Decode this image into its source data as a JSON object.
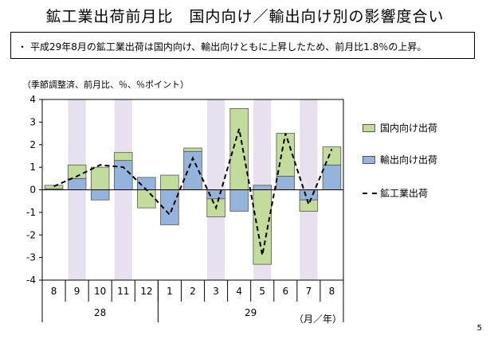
{
  "slide": {
    "title": "鉱工業出荷前月比　国内向け／輸出向け別の影響度合い",
    "summary_bullet": "・",
    "summary": "平成29年8月の鉱工業出荷は国内向け、輸出向けともに上昇したため、前月比1.8％の上昇。",
    "unit_note": "（季節調整済、前月比、％、％ポイント）",
    "page_number": "5",
    "axis_unit": "（月／年）"
  },
  "colors": {
    "domestic": "#c3dc9b",
    "export": "#94b4dc",
    "band": "#e6e0ef",
    "line": "#000000"
  },
  "chart_data": {
    "type": "bar",
    "stacked": true,
    "categories": [
      "8",
      "9",
      "10",
      "11",
      "12",
      "1",
      "2",
      "3",
      "4",
      "5",
      "6",
      "7",
      "8"
    ],
    "year_labels": [
      {
        "label": "28",
        "from": 0,
        "to": 4
      },
      {
        "label": "29",
        "from": 5,
        "to": 12
      }
    ],
    "shaded_categories": [
      1,
      3,
      7,
      9,
      11
    ],
    "series": [
      {
        "name": "国内向け出荷",
        "kind": "bar",
        "values": [
          0.15,
          0.6,
          1.0,
          0.35,
          -0.8,
          0.65,
          0.15,
          -0.8,
          3.6,
          -3.3,
          1.9,
          -0.5,
          0.8
        ]
      },
      {
        "name": "輸出向け出荷",
        "kind": "bar",
        "values": [
          0.05,
          0.5,
          -0.45,
          1.3,
          0.55,
          -1.55,
          1.7,
          -0.4,
          -0.95,
          0.2,
          0.6,
          -0.45,
          1.1
        ]
      },
      {
        "name": "鉱工業出荷",
        "kind": "line",
        "values": [
          0.15,
          0.6,
          1.1,
          1.0,
          0.0,
          -1.1,
          1.4,
          -0.8,
          2.7,
          -2.9,
          2.5,
          -0.65,
          1.8
        ]
      }
    ],
    "yticks": [
      "4",
      "3",
      "2",
      "1",
      "0",
      "-1",
      "-2",
      "-3",
      "-4"
    ],
    "ylim": [
      -4,
      4
    ],
    "legend_position": "right"
  }
}
